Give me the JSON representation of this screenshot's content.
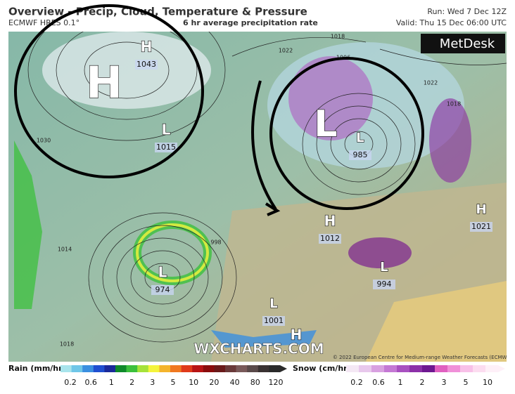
{
  "header": {
    "title": "Overview - Precip, Cloud, Temperature & Pressure",
    "model": "ECMWF HRES 0.1°",
    "field": "6 hr average precipitation rate",
    "run": "Run: Wed 7 Dec 12Z",
    "valid": "Valid: Thu 15 Dec 06:00 UTC",
    "logo": "MetDesk"
  },
  "map": {
    "watermark": "WXCHARTS.COM",
    "copyright": "© 2022 European Centre for Medium-range Weather Forecasts (ECMWF)",
    "pressure_centers": [
      {
        "symbol": "H"
      },
      {
        "symbol": "L"
      },
      {
        "symbol": "H",
        "value": 1043
      },
      {
        "symbol": "L",
        "value": 1015
      },
      {
        "symbol": "L",
        "value": 985
      },
      {
        "symbol": "H",
        "value": 1012
      },
      {
        "symbol": "H",
        "value": 1021
      },
      {
        "symbol": "L",
        "value": 974
      },
      {
        "symbol": "L",
        "value": 994
      },
      {
        "symbol": "L",
        "value": 1001
      },
      {
        "symbol": "H"
      }
    ],
    "isobar_labels": [
      1018,
      1022,
      1006,
      1030,
      1014,
      998,
      1018,
      1022,
      1018
    ]
  },
  "legend": {
    "rain": {
      "label": "Rain (mm/hr)",
      "ticks": [
        0.2,
        0.6,
        1,
        2,
        3,
        5,
        10,
        20,
        40,
        80,
        120
      ],
      "colors": [
        "#a8e4ec",
        "#6fc6e8",
        "#3b8fe0",
        "#1f4fd0",
        "#1a2a9a",
        "#0f8a2a",
        "#3cc03c",
        "#a6e23a",
        "#f4f43c",
        "#f4b42c",
        "#f07820",
        "#e03a1a",
        "#b81414",
        "#8a0c0c",
        "#6a1a1a",
        "#6a3a3a",
        "#7a5a5a",
        "#5a4a4a",
        "#3a3232",
        "#2a2a2a"
      ]
    },
    "snow": {
      "label": "Snow (cm/hr)",
      "ticks": [
        0.2,
        0.6,
        1,
        2,
        3,
        5,
        10
      ],
      "colors": [
        "#f4e8f4",
        "#e8c8ec",
        "#d8a0e0",
        "#c478d4",
        "#a850c0",
        "#8c30a8",
        "#6e1890",
        "#e060c0",
        "#f090d8",
        "#f8c0e8",
        "#fcdcf0",
        "#fef0f8"
      ]
    }
  }
}
